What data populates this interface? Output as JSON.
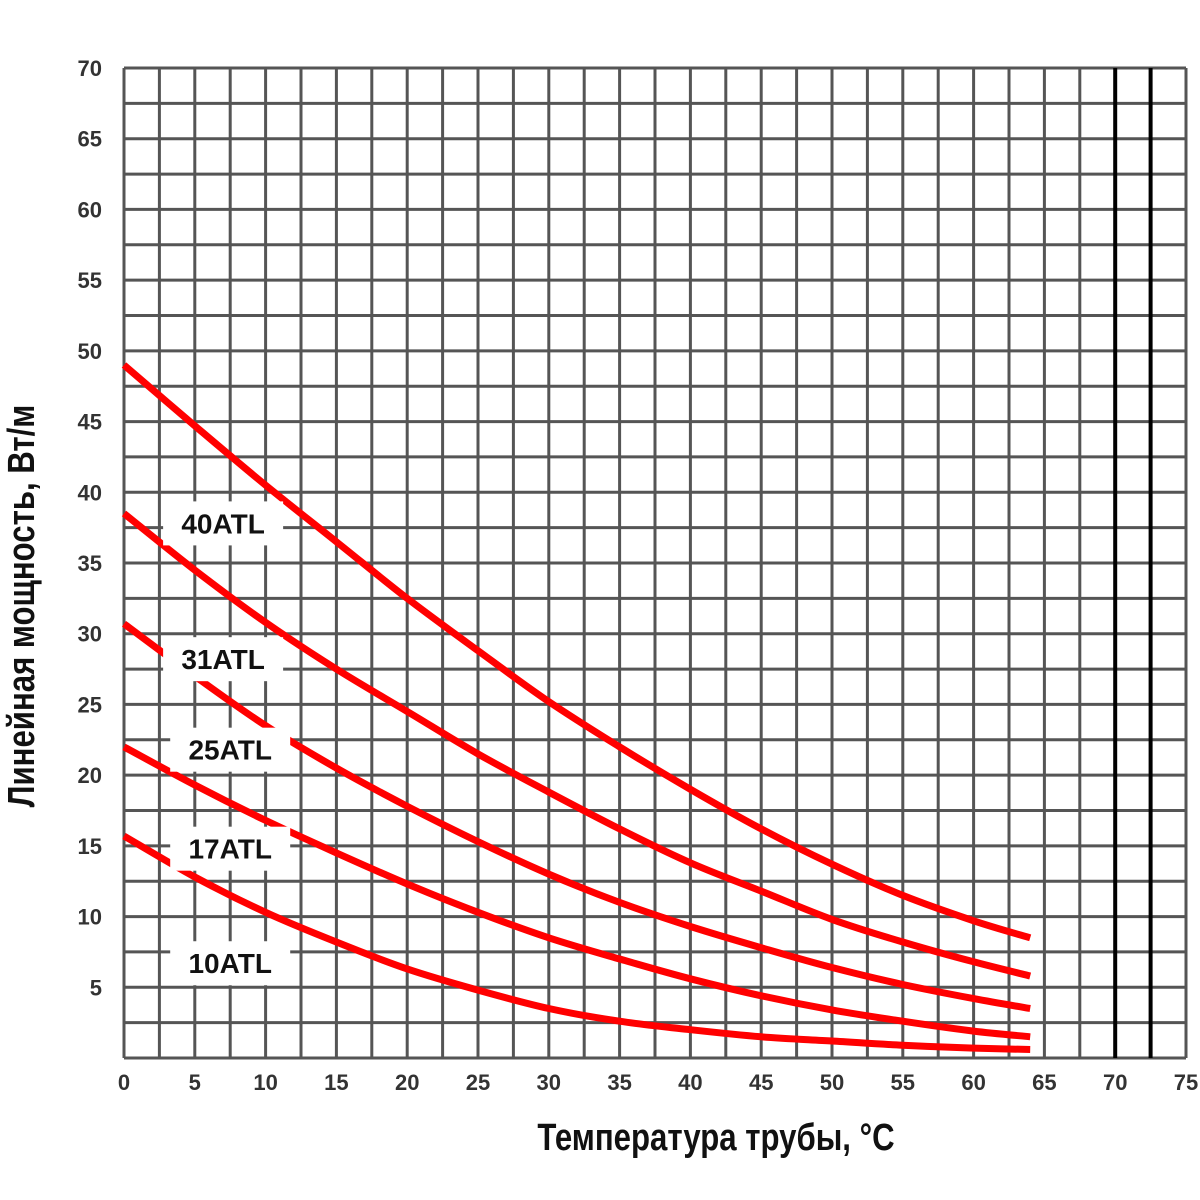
{
  "chart_data": {
    "type": "line",
    "xlabel": "Температура трубы, °С",
    "ylabel": "Линейная мощность, Вт/м",
    "xlim": [
      0,
      75
    ],
    "ylim": [
      0,
      70
    ],
    "x_ticks": [
      "0",
      "5",
      "10",
      "15",
      "20",
      "25",
      "30",
      "35",
      "40",
      "45",
      "50",
      "55",
      "60",
      "65",
      "70",
      "75"
    ],
    "y_ticks": [
      "5",
      "10",
      "15",
      "20",
      "25",
      "30",
      "35",
      "40",
      "45",
      "50",
      "55",
      "60",
      "65",
      "70"
    ],
    "grid": true,
    "series": [
      {
        "name": "40ATL",
        "color": "#ff0000",
        "x": [
          0,
          5,
          10,
          15,
          20,
          25,
          30,
          35,
          40,
          45,
          50,
          55,
          60,
          64
        ],
        "y": [
          49,
          44.7,
          40.5,
          36.5,
          32.5,
          28.8,
          25.2,
          22,
          19,
          16.2,
          13.7,
          11.5,
          9.7,
          8.5
        ]
      },
      {
        "name": "31ATL",
        "color": "#ff0000",
        "x": [
          0,
          5,
          10,
          15,
          20,
          25,
          30,
          35,
          40,
          45,
          50,
          55,
          60,
          64
        ],
        "y": [
          38.5,
          34.5,
          30.8,
          27.5,
          24.5,
          21.5,
          18.8,
          16.2,
          13.8,
          11.8,
          9.8,
          8.2,
          6.8,
          5.8
        ]
      },
      {
        "name": "25ATL",
        "color": "#ff0000",
        "x": [
          0,
          5,
          10,
          15,
          20,
          25,
          30,
          35,
          40,
          45,
          50,
          55,
          60,
          64
        ],
        "y": [
          30.7,
          27,
          23.5,
          20.5,
          17.8,
          15.3,
          13,
          11,
          9.3,
          7.8,
          6.4,
          5.2,
          4.2,
          3.5
        ]
      },
      {
        "name": "17ATL",
        "color": "#ff0000",
        "x": [
          0,
          5,
          10,
          15,
          20,
          25,
          30,
          35,
          40,
          45,
          50,
          55,
          60,
          64
        ],
        "y": [
          22,
          19.3,
          16.8,
          14.5,
          12.3,
          10.3,
          8.5,
          7,
          5.6,
          4.4,
          3.4,
          2.6,
          1.9,
          1.5
        ]
      },
      {
        "name": "10ATL",
        "color": "#ff0000",
        "x": [
          0,
          5,
          10,
          15,
          20,
          25,
          30,
          35,
          40,
          45,
          50,
          55,
          60,
          64
        ],
        "y": [
          15.7,
          12.8,
          10.3,
          8.2,
          6.3,
          4.8,
          3.5,
          2.6,
          2,
          1.5,
          1.2,
          0.9,
          0.7,
          0.6
        ]
      }
    ],
    "labels": [
      {
        "name": "40ATL",
        "x": 7,
        "y": 37.8
      },
      {
        "name": "31ATL",
        "x": 7,
        "y": 28.2
      },
      {
        "name": "25ATL",
        "x": 7.5,
        "y": 21.8
      },
      {
        "name": "17ATL",
        "x": 7.5,
        "y": 14.8
      },
      {
        "name": "10ATL",
        "x": 7.5,
        "y": 6.7
      }
    ],
    "highlight_x": [
      70,
      72.5
    ]
  }
}
